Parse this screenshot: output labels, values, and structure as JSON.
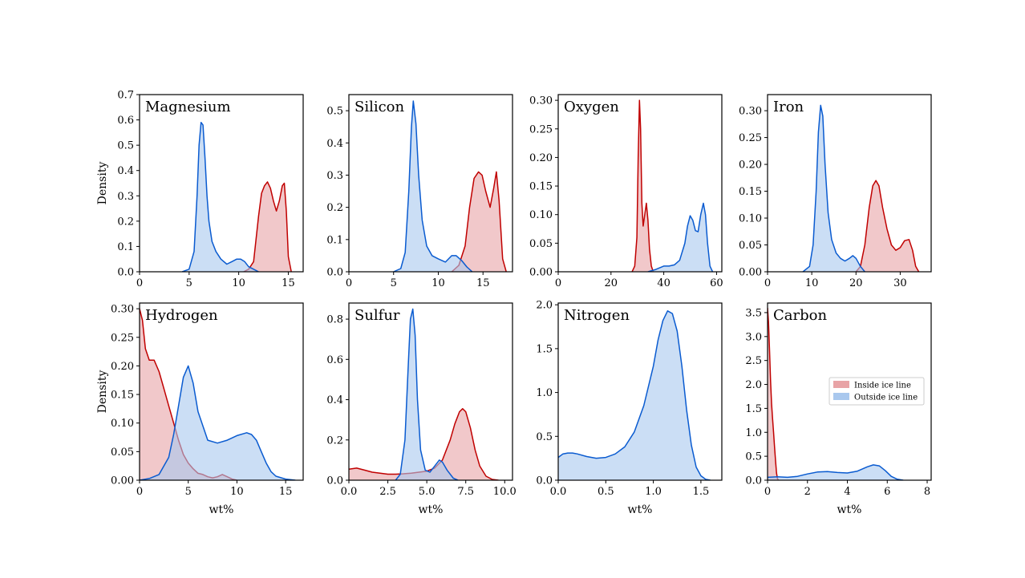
{
  "figure": {
    "legend": {
      "placement": "right",
      "entries": [
        {
          "label": "Inside ice line",
          "fill": "#e8a3a6",
          "edge": "#c00000"
        },
        {
          "label": "Outside ice line",
          "fill": "#a9c8ee",
          "edge": "#0a5bd0"
        }
      ]
    }
  },
  "chart_data": [
    {
      "type": "area",
      "title": "Magnesium",
      "xlabel": "",
      "ylabel": "Density",
      "xlim": [
        0,
        16.5
      ],
      "ylim": [
        0,
        0.7
      ],
      "xticks": [
        0,
        5,
        10,
        15
      ],
      "yticks": [
        0.0,
        0.1,
        0.2,
        0.3,
        0.4,
        0.5,
        0.6,
        0.7
      ],
      "series": [
        {
          "kind": "inside",
          "x": [
            10.5,
            11.0,
            11.5,
            12.0,
            12.3,
            12.6,
            12.9,
            13.2,
            13.5,
            13.8,
            14.1,
            14.4,
            14.6,
            14.8,
            15.0,
            15.3
          ],
          "y": [
            0,
            0.01,
            0.04,
            0.22,
            0.31,
            0.34,
            0.355,
            0.33,
            0.28,
            0.24,
            0.28,
            0.34,
            0.35,
            0.24,
            0.06,
            0
          ]
        },
        {
          "kind": "outside",
          "x": [
            4.3,
            5.0,
            5.5,
            5.8,
            6.0,
            6.2,
            6.4,
            6.6,
            6.8,
            7.0,
            7.3,
            7.7,
            8.2,
            8.8,
            9.3,
            9.8,
            10.2,
            10.6,
            11.0,
            11.5,
            12.0
          ],
          "y": [
            0,
            0.01,
            0.08,
            0.3,
            0.5,
            0.59,
            0.58,
            0.45,
            0.3,
            0.2,
            0.12,
            0.08,
            0.05,
            0.03,
            0.04,
            0.05,
            0.05,
            0.04,
            0.02,
            0.01,
            0
          ]
        }
      ]
    },
    {
      "type": "area",
      "title": "Silicon",
      "xlabel": "",
      "ylabel": "",
      "xlim": [
        0,
        18.3
      ],
      "ylim": [
        0,
        0.55
      ],
      "xticks": [
        0,
        5,
        10,
        15
      ],
      "yticks": [
        0.0,
        0.1,
        0.2,
        0.3,
        0.4,
        0.5
      ],
      "series": [
        {
          "kind": "inside",
          "x": [
            11.5,
            12.3,
            13.0,
            13.5,
            14.0,
            14.5,
            14.9,
            15.3,
            15.8,
            16.2,
            16.5,
            16.8,
            17.2,
            17.6
          ],
          "y": [
            0,
            0.02,
            0.08,
            0.2,
            0.29,
            0.31,
            0.3,
            0.25,
            0.2,
            0.26,
            0.31,
            0.22,
            0.04,
            0
          ]
        },
        {
          "kind": "outside",
          "x": [
            5.0,
            5.8,
            6.3,
            6.7,
            7.0,
            7.2,
            7.5,
            7.8,
            8.2,
            8.7,
            9.3,
            10.0,
            10.8,
            11.5,
            12.0,
            12.6,
            13.2,
            13.8
          ],
          "y": [
            0,
            0.01,
            0.06,
            0.25,
            0.45,
            0.53,
            0.46,
            0.3,
            0.16,
            0.08,
            0.05,
            0.04,
            0.03,
            0.05,
            0.05,
            0.035,
            0.015,
            0
          ]
        }
      ]
    },
    {
      "type": "area",
      "title": "Oxygen",
      "xlabel": "",
      "ylabel": "",
      "xlim": [
        0,
        62
      ],
      "ylim": [
        0,
        0.31
      ],
      "xticks": [
        0,
        20,
        40,
        60
      ],
      "yticks": [
        0.0,
        0.05,
        0.1,
        0.15,
        0.2,
        0.25,
        0.3
      ],
      "series": [
        {
          "kind": "inside",
          "x": [
            28.0,
            29.0,
            29.8,
            30.3,
            30.8,
            31.2,
            31.7,
            32.2,
            32.8,
            33.4,
            34.0,
            34.6,
            35.3,
            36.0
          ],
          "y": [
            0,
            0.01,
            0.06,
            0.2,
            0.3,
            0.25,
            0.12,
            0.08,
            0.1,
            0.12,
            0.09,
            0.04,
            0.01,
            0
          ]
        },
        {
          "kind": "outside",
          "x": [
            34.0,
            37.0,
            40.0,
            42.0,
            44.0,
            46.0,
            48.0,
            49.0,
            50.0,
            51.0,
            52.0,
            53.0,
            54.0,
            55.0,
            55.8,
            56.6,
            57.5,
            58.5
          ],
          "y": [
            0,
            0.004,
            0.01,
            0.01,
            0.012,
            0.02,
            0.05,
            0.08,
            0.098,
            0.09,
            0.072,
            0.07,
            0.1,
            0.12,
            0.1,
            0.05,
            0.01,
            0
          ]
        }
      ]
    },
    {
      "type": "area",
      "title": "Iron",
      "xlabel": "",
      "ylabel": "",
      "xlim": [
        0,
        37
      ],
      "ylim": [
        0,
        0.33
      ],
      "xticks": [
        0,
        10,
        20,
        30
      ],
      "yticks": [
        0.0,
        0.05,
        0.1,
        0.15,
        0.2,
        0.25,
        0.3
      ],
      "series": [
        {
          "kind": "inside",
          "x": [
            20.0,
            21.0,
            22.0,
            23.0,
            23.8,
            24.5,
            25.2,
            26.0,
            27.0,
            28.0,
            29.0,
            30.0,
            31.0,
            32.0,
            32.8,
            33.5,
            34.2
          ],
          "y": [
            0,
            0.01,
            0.05,
            0.12,
            0.16,
            0.17,
            0.16,
            0.12,
            0.08,
            0.05,
            0.04,
            0.045,
            0.058,
            0.06,
            0.04,
            0.01,
            0
          ]
        },
        {
          "kind": "outside",
          "x": [
            8.0,
            9.5,
            10.3,
            11.0,
            11.5,
            12.0,
            12.5,
            13.0,
            13.7,
            14.5,
            15.5,
            16.5,
            17.5,
            18.5,
            19.3,
            20.0,
            21.0,
            22.0
          ],
          "y": [
            0,
            0.01,
            0.05,
            0.15,
            0.26,
            0.31,
            0.29,
            0.2,
            0.11,
            0.06,
            0.035,
            0.025,
            0.02,
            0.025,
            0.03,
            0.025,
            0.01,
            0
          ]
        }
      ]
    },
    {
      "type": "area",
      "title": "Hydrogen",
      "xlabel": "wt%",
      "ylabel": "Density",
      "xlim": [
        0,
        16.8
      ],
      "ylim": [
        0,
        0.31
      ],
      "xticks": [
        0,
        5,
        10,
        15
      ],
      "yticks": [
        0.0,
        0.05,
        0.1,
        0.15,
        0.2,
        0.25,
        0.3
      ],
      "series": [
        {
          "kind": "inside",
          "x": [
            0.0,
            0.3,
            0.6,
            1.0,
            1.5,
            2.0,
            2.5,
            3.0,
            3.5,
            4.0,
            4.5,
            5.0,
            5.5,
            6.0,
            6.5,
            7.0,
            7.5,
            8.0,
            8.5,
            9.0,
            9.5,
            10.0
          ],
          "y": [
            0.3,
            0.28,
            0.23,
            0.21,
            0.21,
            0.19,
            0.16,
            0.13,
            0.1,
            0.07,
            0.045,
            0.03,
            0.02,
            0.012,
            0.01,
            0.006,
            0.004,
            0.006,
            0.01,
            0.006,
            0.002,
            0
          ]
        },
        {
          "kind": "outside",
          "x": [
            0.0,
            1.0,
            2.0,
            3.0,
            3.5,
            4.0,
            4.5,
            5.0,
            5.5,
            6.0,
            7.0,
            8.0,
            9.0,
            10.0,
            11.0,
            11.5,
            12.0,
            12.5,
            13.0,
            13.5,
            14.0,
            15.0,
            16.0
          ],
          "y": [
            0,
            0.003,
            0.01,
            0.04,
            0.08,
            0.13,
            0.18,
            0.2,
            0.17,
            0.12,
            0.07,
            0.065,
            0.07,
            0.078,
            0.083,
            0.08,
            0.07,
            0.05,
            0.03,
            0.015,
            0.007,
            0.002,
            0
          ]
        }
      ]
    },
    {
      "type": "area",
      "title": "Sulfur",
      "xlabel": "wt%",
      "ylabel": "",
      "xlim": [
        0,
        10.5
      ],
      "ylim": [
        0,
        0.88
      ],
      "xticks": [
        0.0,
        2.5,
        5.0,
        7.5,
        10.0
      ],
      "yticks": [
        0.0,
        0.2,
        0.4,
        0.6,
        0.8
      ],
      "series": [
        {
          "kind": "inside",
          "x": [
            0.0,
            0.5,
            1.0,
            1.5,
            2.0,
            2.5,
            3.0,
            3.5,
            4.0,
            4.5,
            5.0,
            5.5,
            6.0,
            6.5,
            6.8,
            7.1,
            7.3,
            7.5,
            7.8,
            8.1,
            8.4,
            8.8,
            9.2,
            9.6
          ],
          "y": [
            0.055,
            0.06,
            0.05,
            0.04,
            0.035,
            0.03,
            0.03,
            0.032,
            0.035,
            0.04,
            0.045,
            0.06,
            0.1,
            0.2,
            0.28,
            0.34,
            0.355,
            0.34,
            0.26,
            0.15,
            0.07,
            0.02,
            0.004,
            0
          ]
        },
        {
          "kind": "outside",
          "x": [
            3.0,
            3.3,
            3.6,
            3.8,
            3.95,
            4.1,
            4.25,
            4.4,
            4.6,
            4.9,
            5.2,
            5.5,
            5.8,
            6.0,
            6.3,
            6.7,
            7.0
          ],
          "y": [
            0,
            0.03,
            0.2,
            0.55,
            0.8,
            0.85,
            0.72,
            0.4,
            0.15,
            0.05,
            0.04,
            0.07,
            0.1,
            0.09,
            0.05,
            0.01,
            0
          ]
        }
      ]
    },
    {
      "type": "area",
      "title": "Nitrogen",
      "xlabel": "wt%",
      "ylabel": "",
      "xlim": [
        0,
        1.72
      ],
      "ylim": [
        0,
        2.02
      ],
      "xticks": [
        0.0,
        0.5,
        1.0,
        1.5
      ],
      "yticks": [
        0.0,
        0.5,
        1.0,
        1.5,
        2.0
      ],
      "series": [
        {
          "kind": "outside",
          "x": [
            0.0,
            0.05,
            0.1,
            0.15,
            0.2,
            0.3,
            0.4,
            0.5,
            0.6,
            0.7,
            0.8,
            0.9,
            1.0,
            1.05,
            1.1,
            1.15,
            1.2,
            1.25,
            1.3,
            1.35,
            1.4,
            1.45,
            1.5,
            1.55,
            1.6
          ],
          "y": [
            0.26,
            0.3,
            0.31,
            0.31,
            0.3,
            0.27,
            0.25,
            0.26,
            0.3,
            0.38,
            0.55,
            0.85,
            1.3,
            1.6,
            1.82,
            1.93,
            1.9,
            1.7,
            1.3,
            0.8,
            0.4,
            0.15,
            0.05,
            0.01,
            0
          ]
        }
      ]
    },
    {
      "type": "area",
      "title": "Carbon",
      "xlabel": "wt%",
      "ylabel": "",
      "xlim": [
        0,
        8.2
      ],
      "ylim": [
        0,
        3.7
      ],
      "xticks": [
        0,
        2,
        4,
        6,
        8
      ],
      "yticks": [
        0.0,
        0.5,
        1.0,
        1.5,
        2.0,
        2.5,
        3.0,
        3.5
      ],
      "series": [
        {
          "kind": "inside",
          "x": [
            0.0,
            0.05,
            0.1,
            0.15,
            0.2,
            0.25,
            0.3,
            0.35,
            0.4,
            0.45,
            0.5,
            0.55
          ],
          "y": [
            3.6,
            3.3,
            2.7,
            2.1,
            1.6,
            1.3,
            1.0,
            0.7,
            0.4,
            0.15,
            0.03,
            0
          ]
        },
        {
          "kind": "outside",
          "x": [
            0.0,
            0.5,
            1.0,
            1.5,
            2.0,
            2.5,
            3.0,
            3.5,
            4.0,
            4.5,
            5.0,
            5.3,
            5.6,
            5.9,
            6.2,
            6.5,
            6.8
          ],
          "y": [
            0.06,
            0.07,
            0.06,
            0.08,
            0.13,
            0.17,
            0.18,
            0.16,
            0.15,
            0.19,
            0.28,
            0.32,
            0.3,
            0.2,
            0.08,
            0.02,
            0
          ]
        }
      ]
    }
  ]
}
